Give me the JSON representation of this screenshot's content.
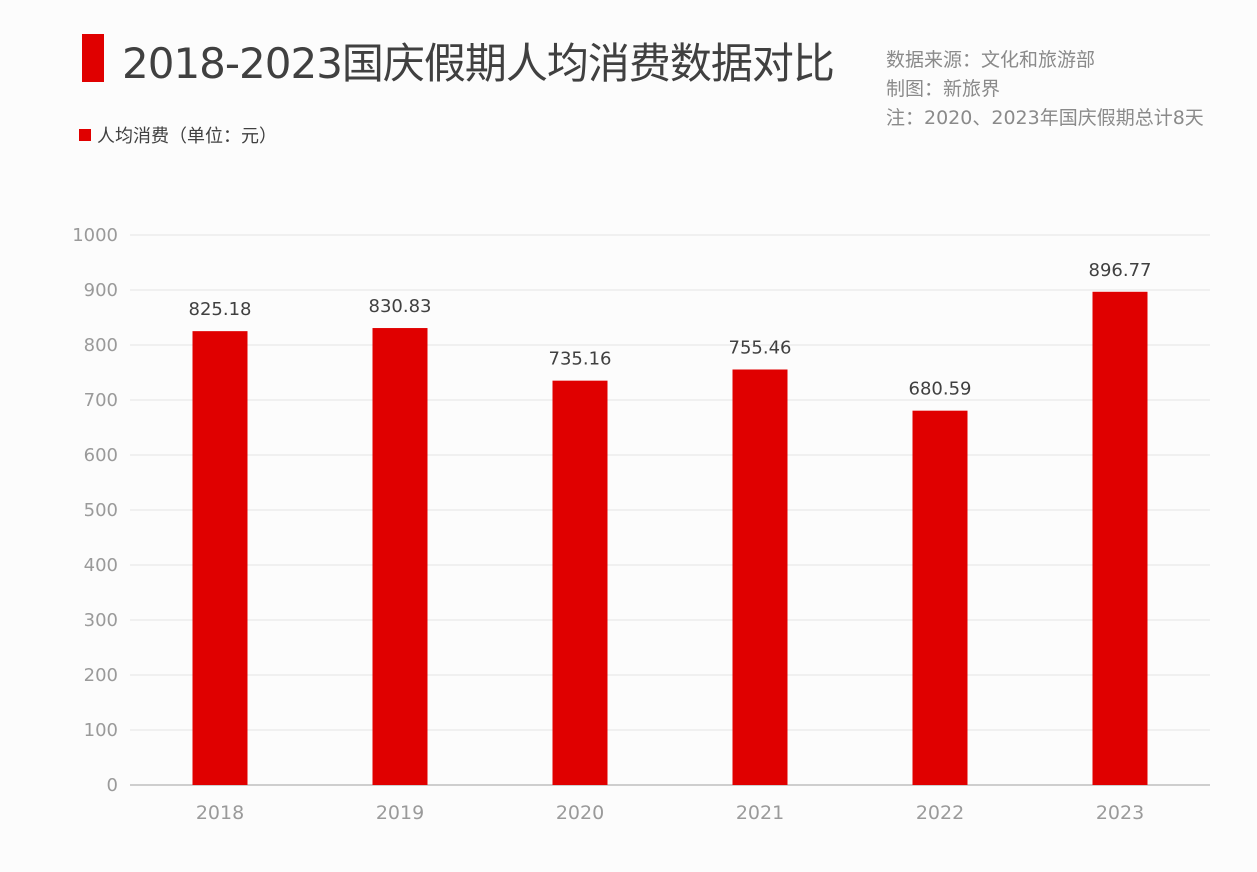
{
  "header": {
    "title": "2018-2023国庆假期人均消费数据对比"
  },
  "notes": {
    "source": "数据来源：文化和旅游部",
    "chart_by": "制图：新旅界",
    "remark": "注：2020、2023年国庆假期总计8天"
  },
  "colors": {
    "bar": "#e00000",
    "grid": "#ececec",
    "axis": "#bfbfbf"
  },
  "chart_data": {
    "type": "bar",
    "title": "2018-2023国庆假期人均消费数据对比",
    "categories": [
      "2018",
      "2019",
      "2020",
      "2021",
      "2022",
      "2023"
    ],
    "series": [
      {
        "name": "人均消费（单位：元）",
        "values": [
          825.18,
          830.83,
          735.16,
          755.46,
          680.59,
          896.77
        ]
      }
    ],
    "data_labels": [
      "825.18",
      "830.83",
      "735.16",
      "755.46",
      "680.59",
      "896.77"
    ],
    "ylim": [
      0,
      1000
    ],
    "yticks": [
      0,
      100,
      200,
      300,
      400,
      500,
      600,
      700,
      800,
      900,
      1000
    ],
    "grid": true,
    "legend_position": "top-left"
  }
}
